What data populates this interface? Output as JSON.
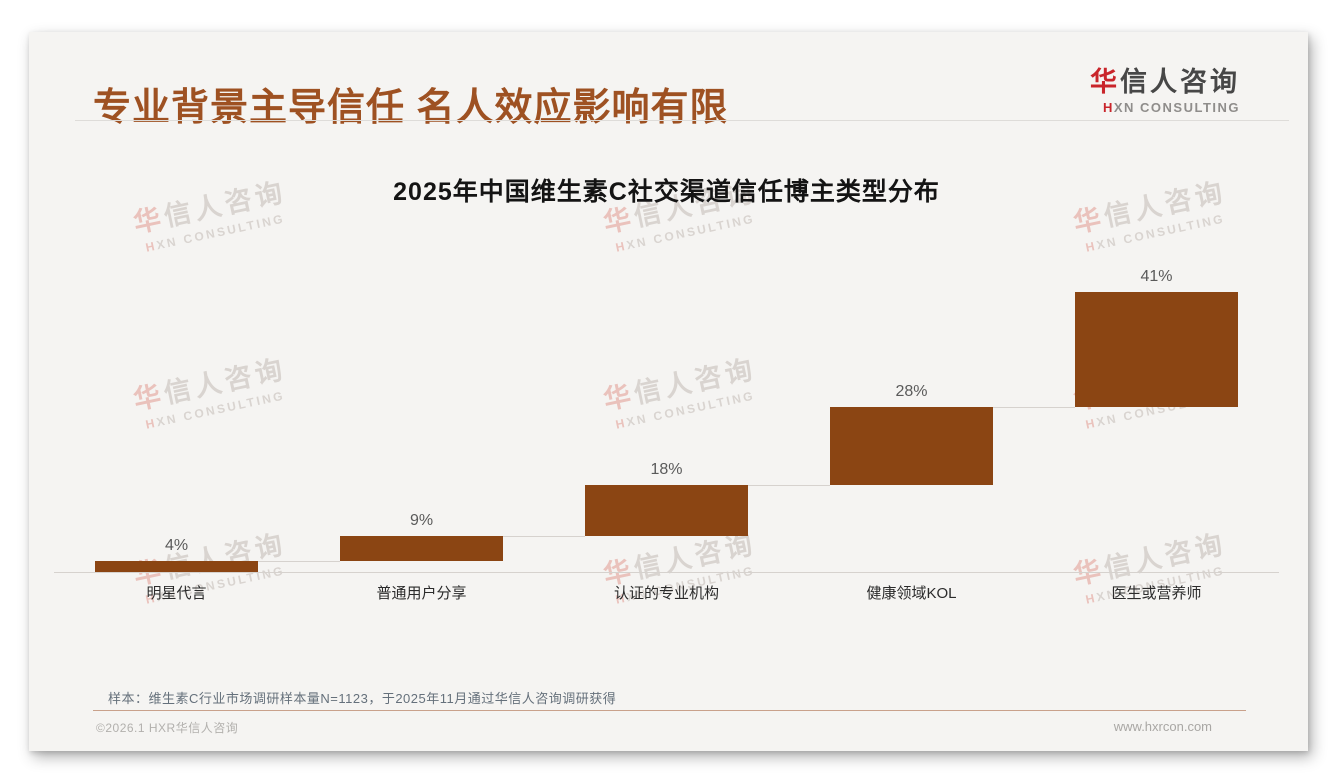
{
  "header": {
    "title": "专业背景主导信任 名人效应影响有限"
  },
  "logo": {
    "brand_accent": "华",
    "brand_rest": "信人咨询",
    "sub_accent": "H",
    "sub_rest": "XN CONSULTING"
  },
  "watermark": {
    "line1_accent": "华",
    "line1_rest": "信人咨询",
    "line2_accent": "H",
    "line2_rest": "XN CONSULTING"
  },
  "chart_data": {
    "type": "bar",
    "subtype": "waterfall",
    "title": "2025年中国维生素C社交渠道信任博主类型分布",
    "categories": [
      "明星代言",
      "普通用户分享",
      "认证的专业机构",
      "健康领域KOL",
      "医生或营养师"
    ],
    "values": [
      4,
      9,
      18,
      28,
      41
    ],
    "labels": [
      "4%",
      "9%",
      "18%",
      "28%",
      "41%"
    ],
    "cumulative_levels": [
      4,
      13,
      31,
      59,
      100
    ],
    "unit": "%",
    "ylim": [
      0,
      100
    ],
    "grid": false,
    "legend": false,
    "bar_color": "#8B4513",
    "connector_color": "#d6d2ce",
    "value_label_color": "#5a5a5a"
  },
  "footnote": {
    "text": "样本：维生素C行业市场调研样本量N=1123，于2025年11月通过华信人咨询调研获得"
  },
  "footer": {
    "copyright": "©2026.1 HXR华信人咨询",
    "website": "www.hxrcon.com"
  },
  "colors": {
    "title_brown": "#9e5122",
    "bar_brown": "#8B4513",
    "logo_red": "#c9252b",
    "card_bg": "#f5f4f2",
    "footer_rule": "#c9a18b"
  }
}
